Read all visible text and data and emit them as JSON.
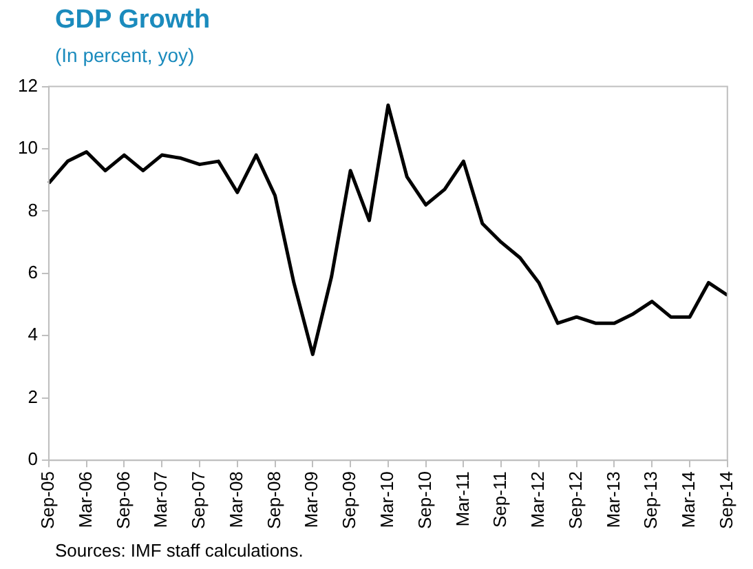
{
  "chart_data": {
    "type": "line",
    "title": "GDP Growth",
    "subtitle": "(In percent, yoy)",
    "categories": [
      "Sep-05",
      null,
      "Mar-06",
      null,
      "Sep-06",
      null,
      "Mar-07",
      null,
      "Sep-07",
      null,
      "Mar-08",
      null,
      "Sep-08",
      null,
      "Mar-09",
      null,
      "Sep-09",
      null,
      "Mar-10",
      null,
      "Sep-10",
      null,
      "Mar-11",
      null,
      "Sep-11",
      null,
      "Mar-12",
      null,
      "Sep-12",
      null,
      "Mar-13",
      null,
      "Sep-13",
      null,
      "Mar-14",
      null,
      "Sep-14"
    ],
    "series": [
      {
        "color": "#000000",
        "values": [
          8.9,
          9.6,
          9.9,
          9.3,
          9.8,
          9.3,
          9.8,
          9.7,
          9.5,
          9.6,
          8.6,
          9.8,
          8.5,
          5.7,
          3.4,
          5.9,
          9.3,
          7.7,
          11.4,
          9.1,
          8.2,
          8.7,
          9.6,
          7.6,
          7.0,
          6.5,
          5.7,
          4.4,
          4.6,
          4.4,
          4.4,
          4.7,
          5.1,
          4.6,
          4.6,
          5.7,
          5.3
        ]
      }
    ],
    "ylim": [
      0,
      12
    ],
    "yticks": [
      0,
      2,
      4,
      6,
      8,
      10,
      12
    ],
    "grid": false,
    "legend": false,
    "marker": "none",
    "line_style": "solid",
    "annotations": [
      "Sources: IMF staff calculations."
    ]
  }
}
